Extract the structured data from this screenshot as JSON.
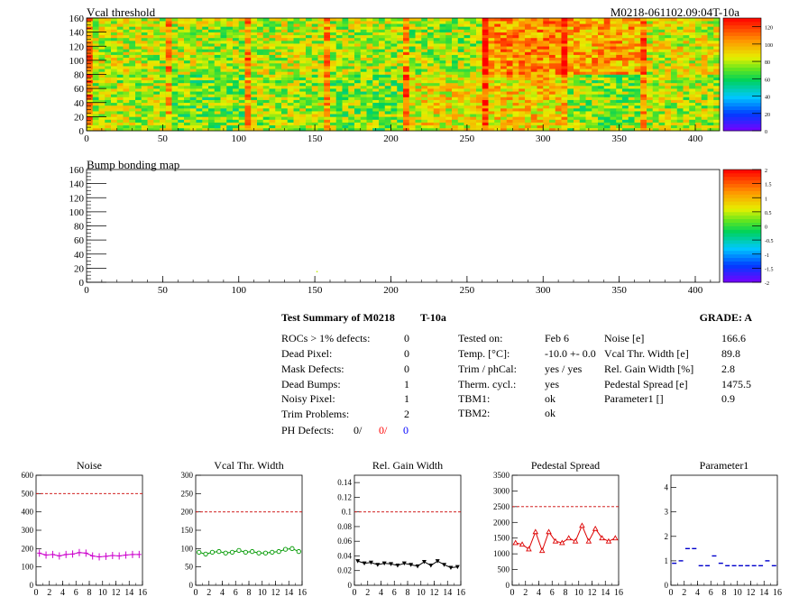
{
  "header": {
    "map1_title": "Vcal threshold",
    "module_id": "M0218-061102.09:04T-10a",
    "map2_title": "Bump bonding map"
  },
  "colors": {
    "red": "#ff0000",
    "blue": "#0000ff",
    "noise_series": "#cc00cc",
    "vcal_series": "#009900",
    "gain_series": "#000000",
    "pedestal_series": "#dd0000",
    "param_series": "#0000cc",
    "reference_line": "#cc0000"
  },
  "summary": {
    "title": "Test Summary of M0218",
    "test_tag": "T-10a",
    "grade_label": "GRADE:  A",
    "left": [
      {
        "label": "ROCs > 1% defects:",
        "value": "0"
      },
      {
        "label": "Dead Pixel:",
        "value": "0"
      },
      {
        "label": "Mask Defects:",
        "value": "0"
      },
      {
        "label": "Dead Bumps:",
        "value": "1"
      },
      {
        "label": "Noisy Pixel:",
        "value": "1"
      },
      {
        "label": "Trim Problems:",
        "value": "2"
      }
    ],
    "ph_defects": {
      "label": "PH Defects:",
      "v1": "0/",
      "v2": "0/",
      "v3": "0"
    },
    "middle": [
      {
        "label": "Tested on:",
        "value": "Feb 6"
      },
      {
        "label": "Temp. [°C]:",
        "value": "-10.0 +- 0.0"
      },
      {
        "label": "Trim / phCal:",
        "value": "yes / yes"
      },
      {
        "label": "Therm. cycl.:",
        "value": "yes"
      },
      {
        "label": "TBM1:",
        "value": "ok"
      },
      {
        "label": "TBM2:",
        "value": "ok"
      }
    ],
    "right": [
      {
        "label": "Noise [e]",
        "value": "166.6"
      },
      {
        "label": "Vcal Thr. Width [e]",
        "value": "89.8"
      },
      {
        "label": "Rel. Gain Width [%]",
        "value": "2.8"
      },
      {
        "label": "Pedestal Spread [e]",
        "value": "1475.5"
      },
      {
        "label": "Parameter1 []",
        "value": "0.9"
      }
    ]
  },
  "chart_data": [
    {
      "type": "heatmap",
      "title": "Vcal threshold",
      "xlim": [
        0,
        416
      ],
      "ylim": [
        0,
        160
      ],
      "xticks": [
        0,
        50,
        100,
        150,
        200,
        250,
        300,
        350,
        400
      ],
      "yticks": [
        0,
        20,
        40,
        60,
        80,
        100,
        120,
        140,
        160
      ],
      "colorbar_ticks": [
        0,
        20,
        40,
        60,
        80,
        100,
        120
      ],
      "colorbar_range": [
        0,
        130
      ],
      "roc_mean_values": [
        [
          80,
          72,
          78,
          74,
          88,
          92,
          75,
          80
        ],
        [
          82,
          80,
          82,
          80,
          78,
          105,
          100,
          85
        ]
      ]
    },
    {
      "type": "heatmap",
      "title": "Bump bonding map",
      "xlim": [
        0,
        416
      ],
      "ylim": [
        0,
        160
      ],
      "xticks": [
        0,
        50,
        100,
        150,
        200,
        250,
        300,
        350,
        400
      ],
      "yticks": [
        0,
        20,
        40,
        60,
        80,
        100,
        120,
        140,
        160
      ],
      "colorbar_ticks": [
        -2,
        -1.5,
        -1,
        -0.5,
        0,
        0.5,
        1,
        1.5,
        2
      ],
      "colorbar_range": [
        -2,
        2
      ],
      "points": [
        {
          "x": 151,
          "y": 15,
          "value": 0.5
        }
      ]
    },
    {
      "type": "scatter",
      "title": "Noise",
      "xlim": [
        0,
        16
      ],
      "ylim": [
        0,
        600
      ],
      "xticks": [
        0,
        2,
        4,
        6,
        8,
        10,
        12,
        14,
        16
      ],
      "yticks": [
        0,
        100,
        200,
        300,
        400,
        500,
        600
      ],
      "reference": 500,
      "x": [
        0,
        1,
        2,
        3,
        4,
        5,
        6,
        7,
        8,
        9,
        10,
        11,
        12,
        13,
        14,
        15
      ],
      "values": [
        175,
        165,
        168,
        160,
        168,
        170,
        178,
        175,
        160,
        155,
        158,
        162,
        160,
        165,
        168,
        168
      ]
    },
    {
      "type": "line",
      "title": "Vcal Thr. Width",
      "xlim": [
        0,
        16
      ],
      "ylim": [
        0,
        300
      ],
      "xticks": [
        0,
        2,
        4,
        6,
        8,
        10,
        12,
        14,
        16
      ],
      "yticks": [
        0,
        50,
        100,
        150,
        200,
        250,
        300
      ],
      "reference": 200,
      "x": [
        0,
        1,
        2,
        3,
        4,
        5,
        6,
        7,
        8,
        9,
        10,
        11,
        12,
        13,
        14,
        15
      ],
      "values": [
        90,
        85,
        90,
        92,
        88,
        90,
        95,
        90,
        92,
        88,
        88,
        90,
        92,
        98,
        100,
        92
      ]
    },
    {
      "type": "line",
      "title": "Rel. Gain Width",
      "xlim": [
        0,
        16
      ],
      "ylim": [
        0,
        0.15
      ],
      "xticks": [
        0,
        2,
        4,
        6,
        8,
        10,
        12,
        14,
        16
      ],
      "yticks": [
        0,
        0.02,
        0.04,
        0.06,
        0.08,
        0.1,
        0.12,
        0.14
      ],
      "reference": 0.1,
      "x": [
        0,
        1,
        2,
        3,
        4,
        5,
        6,
        7,
        8,
        9,
        10,
        11,
        12,
        13,
        14,
        15
      ],
      "values": [
        0.033,
        0.03,
        0.031,
        0.028,
        0.03,
        0.029,
        0.027,
        0.03,
        0.028,
        0.026,
        0.032,
        0.027,
        0.033,
        0.028,
        0.024,
        0.025
      ]
    },
    {
      "type": "line",
      "title": "Pedestal Spread",
      "xlim": [
        0,
        16
      ],
      "ylim": [
        0,
        3500
      ],
      "xticks": [
        0,
        2,
        4,
        6,
        8,
        10,
        12,
        14,
        16
      ],
      "yticks": [
        0,
        500,
        1000,
        1500,
        2000,
        2500,
        3000,
        3500
      ],
      "reference": 2500,
      "x": [
        0,
        1,
        2,
        3,
        4,
        5,
        6,
        7,
        8,
        9,
        10,
        11,
        12,
        13,
        14,
        15
      ],
      "values": [
        1350,
        1300,
        1150,
        1700,
        1100,
        1700,
        1400,
        1350,
        1500,
        1400,
        1900,
        1400,
        1800,
        1500,
        1400,
        1500
      ]
    },
    {
      "type": "scatter",
      "title": "Parameter1",
      "xlim": [
        0,
        16
      ],
      "ylim": [
        0,
        4.5
      ],
      "xticks": [
        0,
        2,
        4,
        6,
        8,
        10,
        12,
        14,
        16
      ],
      "yticks": [
        0,
        1,
        2,
        3,
        4
      ],
      "x": [
        0,
        1,
        2,
        3,
        4,
        5,
        6,
        7,
        8,
        9,
        10,
        11,
        12,
        13,
        14,
        15
      ],
      "values": [
        0.9,
        1.0,
        1.5,
        1.5,
        0.8,
        0.8,
        1.2,
        0.9,
        0.8,
        0.8,
        0.8,
        0.8,
        0.8,
        0.8,
        1.0,
        0.8
      ]
    }
  ]
}
